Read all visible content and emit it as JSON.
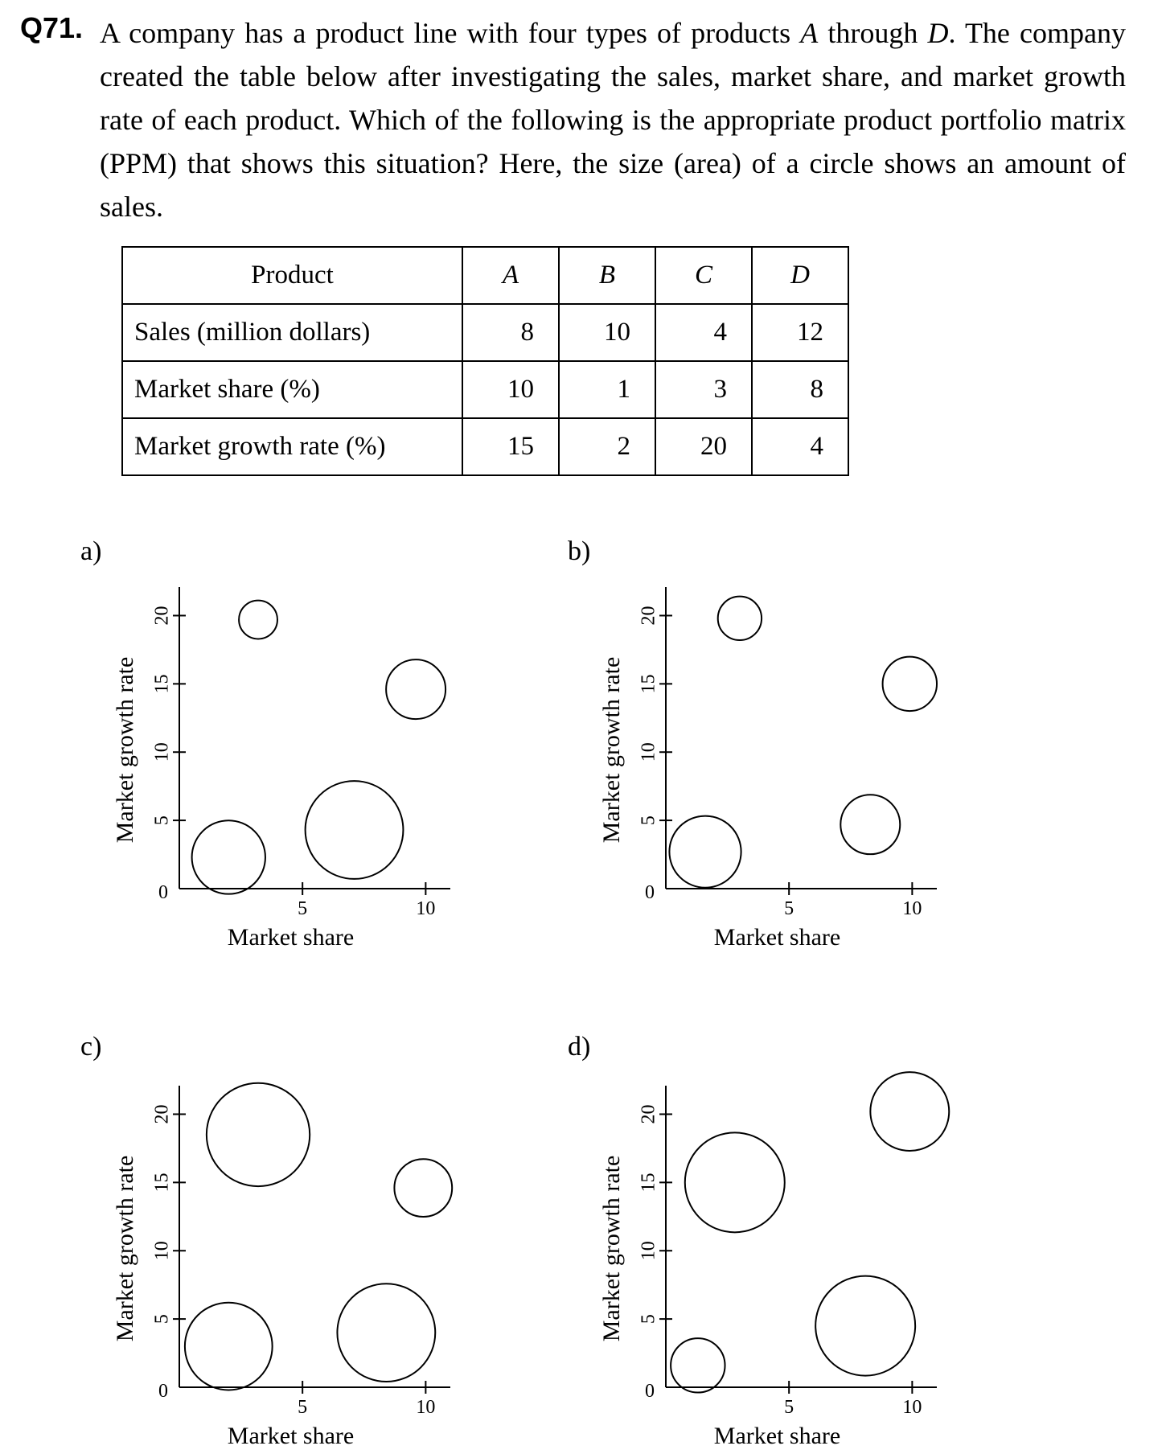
{
  "question": {
    "number": "Q71.",
    "text_before_a": "A company has a product line with four types of products ",
    "italic_a": "A",
    "text_through": " through ",
    "italic_d": "D",
    "text_after_d": ".   The company created the table below after investigating the sales, market share, and market growth rate of each product.   Which of the following is the appropriate product portfolio matrix (PPM) that shows this situation?   Here, the size (area) of a circle shows an amount of sales."
  },
  "table": {
    "header_label": "Product",
    "products": [
      "A",
      "B",
      "C",
      "D"
    ],
    "rows": [
      {
        "label": "Sales (million dollars)",
        "values": [
          "8",
          "10",
          "4",
          "12"
        ]
      },
      {
        "label": "Market share (%)",
        "values": [
          "10",
          "1",
          "3",
          "8"
        ]
      },
      {
        "label": "Market growth rate (%)",
        "values": [
          "15",
          "2",
          "20",
          "4"
        ]
      }
    ]
  },
  "chart_data": [
    {
      "type": "scatter",
      "label": "a)",
      "xlabel": "Market share",
      "ylabel": "Market growth rate",
      "xticks": [
        "5",
        "10"
      ],
      "yticks": [
        "5",
        "10",
        "15",
        "20"
      ],
      "origin_label": "0",
      "xlim": [
        0,
        11
      ],
      "ylim": [
        0,
        21.5
      ],
      "points": [
        {
          "x": 2.0,
          "y": 2.3,
          "size": 0.42
        },
        {
          "x": 3.2,
          "y": 19.7,
          "size": 0.22
        },
        {
          "x": 9.6,
          "y": 14.6,
          "size": 0.34
        },
        {
          "x": 7.1,
          "y": 4.3,
          "size": 0.56
        }
      ]
    },
    {
      "type": "scatter",
      "label": "b)",
      "xlabel": "Market share",
      "ylabel": "Market growth rate",
      "xticks": [
        "5",
        "10"
      ],
      "yticks": [
        "5",
        "10",
        "15",
        "20"
      ],
      "origin_label": "0",
      "xlim": [
        0,
        11
      ],
      "ylim": [
        0,
        21.5
      ],
      "points": [
        {
          "x": 1.6,
          "y": 2.7,
          "size": 0.41
        },
        {
          "x": 3.0,
          "y": 19.8,
          "size": 0.25
        },
        {
          "x": 9.9,
          "y": 15.0,
          "size": 0.31
        },
        {
          "x": 8.3,
          "y": 4.7,
          "size": 0.34
        }
      ]
    },
    {
      "type": "scatter",
      "label": "c)",
      "xlabel": "Market share",
      "ylabel": "Market growth rate",
      "xticks": [
        "5",
        "10"
      ],
      "yticks": [
        "5",
        "10",
        "15",
        "20"
      ],
      "origin_label": "0",
      "xlim": [
        0,
        11
      ],
      "ylim": [
        0,
        21.5
      ],
      "points": [
        {
          "x": 2.0,
          "y": 3.0,
          "size": 0.5
        },
        {
          "x": 3.2,
          "y": 18.5,
          "size": 0.59
        },
        {
          "x": 9.9,
          "y": 14.6,
          "size": 0.33
        },
        {
          "x": 8.4,
          "y": 4.0,
          "size": 0.56
        }
      ]
    },
    {
      "type": "scatter",
      "label": "d)",
      "xlabel": "Market share",
      "ylabel": "Market growth rate",
      "xticks": [
        "5",
        "10"
      ],
      "yticks": [
        "5",
        "10",
        "15",
        "20"
      ],
      "origin_label": "0",
      "xlim": [
        0,
        11
      ],
      "ylim": [
        0,
        21.5
      ],
      "points": [
        {
          "x": 1.3,
          "y": 1.6,
          "size": 0.31
        },
        {
          "x": 2.8,
          "y": 15.0,
          "size": 0.57
        },
        {
          "x": 9.9,
          "y": 20.2,
          "size": 0.45
        },
        {
          "x": 8.1,
          "y": 4.5,
          "size": 0.57
        }
      ]
    }
  ]
}
